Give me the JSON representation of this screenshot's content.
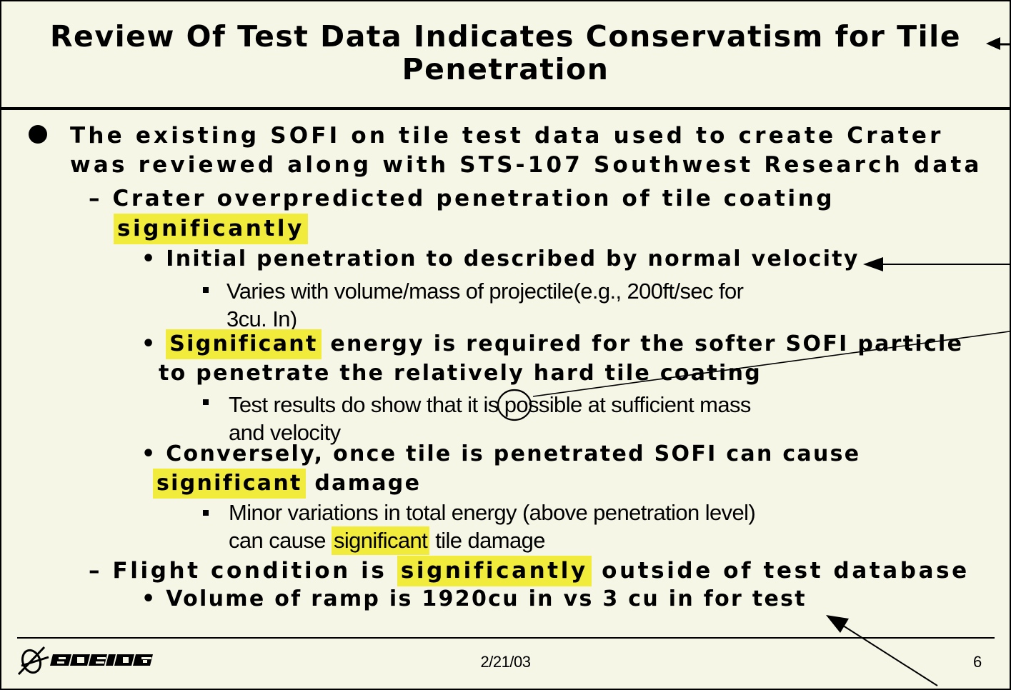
{
  "title": {
    "line1": "Review Of Test Data Indicates Conservatism for Tile",
    "line2": "Penetration"
  },
  "bullets": {
    "b1_line1": "The existing SOFI on tile test data used to create Crater",
    "b1_line2": "was reviewed along with STS-107 Southwest Research data",
    "d1_line1": "Crater overpredicted penetration of tile coating",
    "d1_hl": "significantly",
    "s1": "Initial penetration to described by normal velocity",
    "s1a_line1": "Varies with volume/mass of projectile(e.g., 200ft/sec for",
    "s1a_line2": "3cu. In)",
    "s2_hl": "Significant",
    "s2_line1_rest": "energy is required for the softer SOFI particle",
    "s2_line2": "to penetrate the relatively hard tile coating",
    "s2a_line1": "Test results do show that it is possible at sufficient mass",
    "s2a_line2": "and velocity",
    "s3_line1": "Conversely, once tile is penetrated SOFI can cause",
    "s3_hl": "significant",
    "s3_rest": "damage",
    "s3a_line1": "Minor variations in total energy (above penetration level)",
    "s3a_pre": "can cause",
    "s3a_hl": "significant",
    "s3a_post": "tile damage",
    "d2_pre": "Flight condition is",
    "d2_hl": "significantly",
    "d2_post": "outside of test database",
    "s4": "Volume of ramp is 1920cu in vs 3 cu in for test"
  },
  "footer": {
    "date": "2/21/03",
    "page": "6",
    "logo": "BOEING"
  },
  "colors": {
    "background": "#f6f6e6",
    "highlight": "#f1ec3c",
    "text": "#000000"
  }
}
